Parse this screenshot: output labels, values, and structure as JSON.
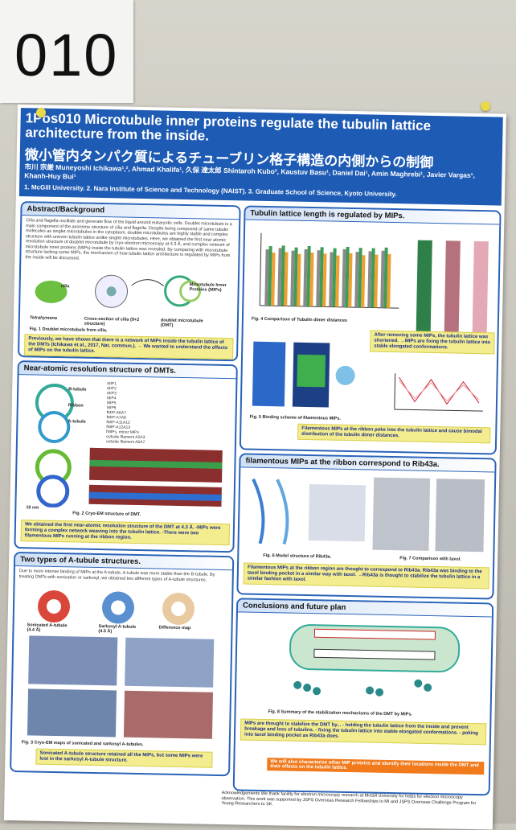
{
  "card": {
    "number": "010"
  },
  "poster": {
    "title_line1": "1Pos010 Microtubule inner proteins regulate the tubulin lattice architecture from the inside.",
    "title_jp": "微小管内タンパク質によるチューブリン格子構造の内側からの制御",
    "authors": "市川 宗厳 Muneyoshi Ichikawa¹,², Ahmad Khalifa¹, 久保 達太郎 Shintaroh Kubo³, Kaustuv Basu¹, Daniel Dai¹, Amin Maghrebi¹, Javier Vargas¹, Khanh-Huy Bui¹",
    "affiliations": "1. McGill University.  2. Nara Institute of Science and Technology (NAIST).  3. Graduate School of Science, Kyoto University.",
    "abstract": {
      "heading": "Abstract/Background",
      "text": "Cilia and flagella oscillate and generate flow of the liquid around eukaryotic cells. Doublet microtubule is a main component of the axoneme structure of cilia and flagella. Despite being composed of same tubulin molecules as singlet microtubules in the cytoplasm, doublet microtubules are highly stable and complex structure with uneven tubulin lattice unlike singlet microtubules. Here, we obtained the first near atomic resolution structure of doublet microtubule by cryo-electron microscopy at 4.3 Å, and complex network of microtubule inner proteins (MIPs) inside the tubulin lattice was revealed. By comparing with microtubule structure lacking some MIPs, the mechanism of how tubulin lattice architecture is regulated by MIPs from the inside will be discussed.",
      "labels": [
        "cilia",
        "Tetrahymena",
        "Cross-section of cilia (9+2 structure)",
        "Microtubule Inner Proteins (MIPs)",
        "doublet microtubule (DMT)"
      ],
      "fig": "Fig. 1 Doublet microtubule from cilia.",
      "note": "Previously, we have shown that there is a network of MIPs inside the tubulin lattice of the DMTs (Ichikawa et al., 2017, Nat. commun.). → We wanted to understand the effects of MIPs on the tubulin lattice."
    },
    "near_atomic": {
      "heading": "Near-atomic resolution structure of DMTs.",
      "labels": [
        "B-tubule",
        "Ribbon",
        "A-tubule"
      ],
      "legend": [
        "MIP1",
        "MIP2",
        "MIP3",
        "MIP4",
        "MIP5",
        "MIP6",
        "fMIP-A6A7",
        "fMIP-A7A8",
        "fMIP-A11A12",
        "fMIP-A12A13",
        "fMIPs, minor MIPs",
        "outside filament A2A3",
        "outside filament A6A7"
      ],
      "scale": "10 nm",
      "fig": "Fig. 2 Cryo-EM structure of DMT.",
      "note": "We obtained the first near-atomic resolution structure of the DMT at 4.3 Å. -MIPs were forming a complex network weaving into the tubulin lattice. -There were two filamentous MIPs running at the ribbon region."
    },
    "two_types": {
      "heading": "Two types of A-tubule structures.",
      "text": "Due to more intense binding of MIPs at the A-tubule, A-tubule was more stable than the B-tubule. By treating DMTs with sonication or sarkosyl, we obtained two different types of A-tubule structures.",
      "labels": [
        "Sonicated A-tubule (4.4 Å)",
        "Sarkosyl A-tubule (4.5 Å)",
        "Difference map"
      ],
      "fig": "Fig. 3 Cryo-EM maps of sonicated and sarkosyl A-tubules.",
      "note": "Sonicated A-tubule structure retained all the MIPs, but some MIPs were lost in the sarkosyl A-tubule structure."
    },
    "lattice_length": {
      "heading": "Tubulin lattice length is regulated by MIPs.",
      "fig4": "Fig. 4 Comparison of Tubulin dimer distances",
      "note1": "After removing some MIPs, the tubulin lattice was shortened. →MIPs are fixing the tubulin lattice into stable elongated conformations.",
      "fig5": "Fig. 5 Binding scheme of filamentous MIPs.",
      "note2": "Filamentous MIPs at the ribbon poke into the tubulin lattice and cause bimodal distribution of the tubulin dimer distances."
    },
    "rib43a": {
      "heading": "filamentous MIPs at the ribbon correspond to Rib43a.",
      "fig6": "Fig. 6 Model structure of Rib43a.",
      "fig7": "Fig. 7 Comparison with taxol.",
      "note": "Filamentous MIPs at the ribbon region are thought to correspond to Rib43a. Rib43a was binding to the taxol binding pocket in a similar way with taxol. →Rib43a is thought to stabilize the tubulin lattice in a similar fashion with taxol."
    },
    "conclusions": {
      "heading": "Conclusions and future plan",
      "fig": "Fig. 8 Summary of the stabilization mechanisms of the DMT by MIPs.",
      "note": "MIPs are thought to stabilize the DMT by... - holding the tubulin lattice from the inside and prevent breakage and loss of tubulins. - fixing the tubulin lattice into stable elongated conformations. - poking into taxol binding pocket as Rib43a does.",
      "future": "We will also characterize other MIP proteins and identify their locations inside the DMT and their effects on the tubulin lattice."
    },
    "acknowledgements": "Acknowledgements We thank facility for electron microscopy research at McGill University for helps for electron microscopy observation. This work was supported by JSPS Overseas Research Fellowships to MI and JSPS Overseas Challenge Program for Young Researchers to SK."
  }
}
